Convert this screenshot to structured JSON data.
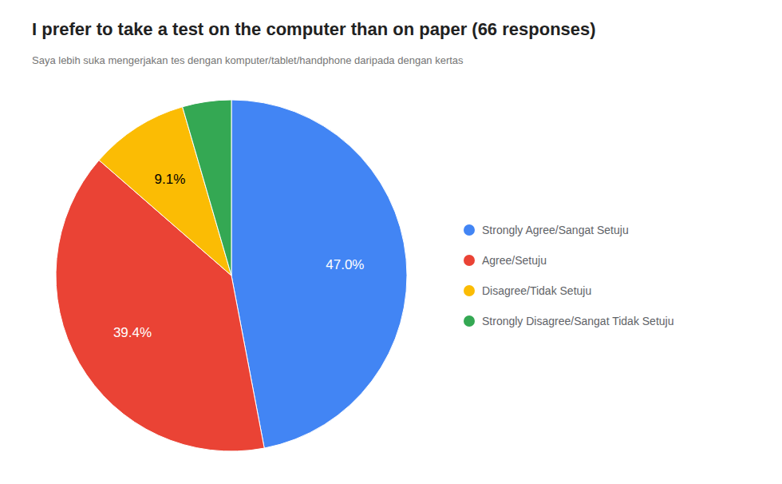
{
  "chart_data": {
    "type": "pie",
    "title": "I prefer to take a test on the computer than on paper (66 responses)",
    "subtitle": "Saya lebih suka mengerjakan tes dengan komputer/tablet/handphone daripada dengan kertas",
    "categories": [
      "Strongly Agree/Sangat Setuju",
      "Agree/Setuju",
      "Disagree/Tidak Setuju",
      "Strongly Disagree/Sangat Tidak Setuju"
    ],
    "values": [
      47.0,
      39.4,
      9.1,
      4.5
    ],
    "value_labels": [
      "47.0%",
      "39.4%",
      "9.1%",
      null
    ],
    "colors": [
      "#4285F4",
      "#EA4335",
      "#FBBC04",
      "#34A853"
    ],
    "data_labels": true,
    "legend": "right"
  }
}
